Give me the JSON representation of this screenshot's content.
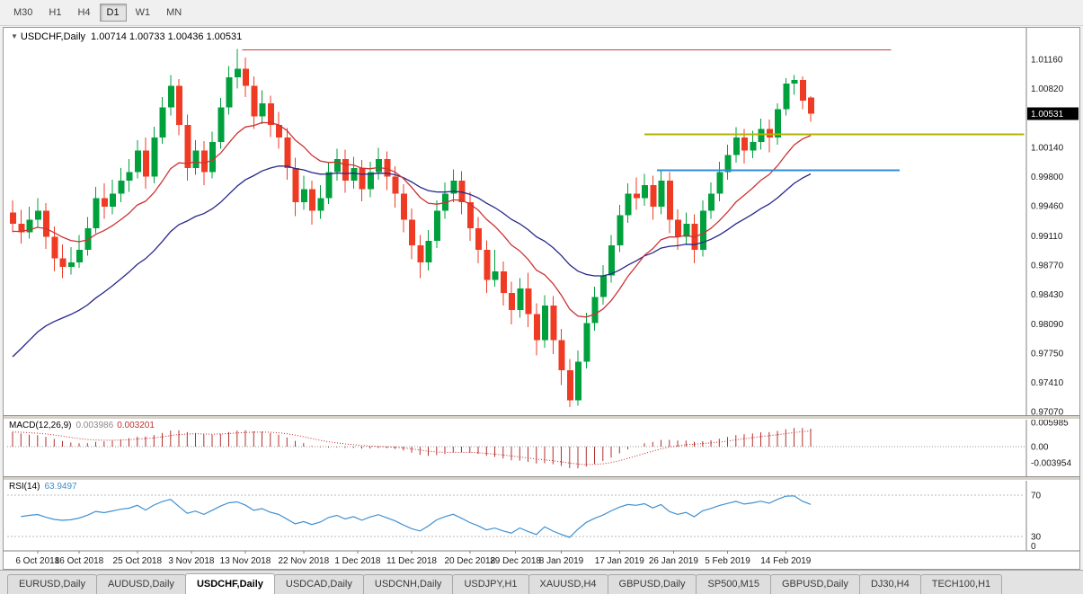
{
  "toolbar": {
    "timeframes": [
      {
        "label": "M30",
        "active": false
      },
      {
        "label": "H1",
        "active": false
      },
      {
        "label": "H4",
        "active": false
      },
      {
        "label": "D1",
        "active": true
      },
      {
        "label": "W1",
        "active": false
      },
      {
        "label": "MN",
        "active": false
      }
    ]
  },
  "chart_window": {
    "title_symbol": "USDCHF,Daily",
    "title_ohlc": "1.00714 1.00733 1.00436 1.00531",
    "macd_label": "MACD(12,26,9)",
    "macd_value_main": "0.003986",
    "macd_value_signal": "0.003201",
    "rsi_label": "RSI(14)",
    "rsi_value": "63.9497"
  },
  "chart_data": {
    "type": "candlestick",
    "symbol": "USDCHF",
    "timeframe": "Daily",
    "ohlc": {
      "open": 1.00714,
      "high": 1.00733,
      "low": 1.00436,
      "close": 1.00531
    },
    "bull_color": "#00a03c",
    "bear_color": "#ef3b24",
    "current_price": "1.00531",
    "price_axis_labels": [
      "1.01160",
      "1.00820",
      "1.00140",
      "0.99800",
      "0.99460",
      "0.99110",
      "0.98770",
      "0.98430",
      "0.98090",
      "0.97750",
      "0.97410",
      "0.97070"
    ],
    "macd_axis_labels": [
      "0.005985",
      "0.00",
      "-0.003954"
    ],
    "rsi_levels": [
      70,
      30
    ],
    "rsi_axis_labels": [
      "70",
      "30",
      "0"
    ],
    "moving_averages": [
      {
        "name": "ma-fast-red",
        "color": "#cc3333"
      },
      {
        "name": "ma-slow-navy",
        "color": "#26268c"
      }
    ],
    "hlines": [
      {
        "name": "resistance-line-red",
        "price": 1.0127,
        "color": "#c04040",
        "width": 1,
        "from_i": 27.6,
        "to_i": 105.7
      },
      {
        "name": "level-line-olive",
        "price": 1.0029,
        "color": "#b3b300",
        "width": 2,
        "from_i": 76.0,
        "to_i": 121.7
      },
      {
        "name": "support-line-blue",
        "price": 0.9987,
        "color": "#2e8ce0",
        "width": 2,
        "from_i": 77.5,
        "to_i": 106.7
      }
    ],
    "x_axis": [
      {
        "label": "6 Oct 2018",
        "i": 3
      },
      {
        "label": "16 Oct 2018",
        "i": 8
      },
      {
        "label": "25 Oct 2018",
        "i": 15
      },
      {
        "label": "3 Nov 2018",
        "i": 21.5
      },
      {
        "label": "13 Nov 2018",
        "i": 28
      },
      {
        "label": "22 Nov 2018",
        "i": 35
      },
      {
        "label": "1 Dec 2018",
        "i": 41.5
      },
      {
        "label": "11 Dec 2018",
        "i": 48
      },
      {
        "label": "20 Dec 2018",
        "i": 55
      },
      {
        "label": "29 Dec 2018",
        "i": 60.5
      },
      {
        "label": "8 Jan 2019",
        "i": 66
      },
      {
        "label": "17 Jan 2019",
        "i": 73
      },
      {
        "label": "26 Jan 2019",
        "i": 79.5
      },
      {
        "label": "5 Feb 2019",
        "i": 86
      },
      {
        "label": "14 Feb 2019",
        "i": 93
      }
    ],
    "candles": [
      [
        0.9938,
        0.9952,
        0.9915,
        0.9925
      ],
      [
        0.9925,
        0.9941,
        0.9902,
        0.9915
      ],
      [
        0.9915,
        0.9945,
        0.9908,
        0.993
      ],
      [
        0.993,
        0.9955,
        0.9921,
        0.994
      ],
      [
        0.994,
        0.9949,
        0.9896,
        0.991
      ],
      [
        0.991,
        0.9922,
        0.987,
        0.9885
      ],
      [
        0.9885,
        0.9901,
        0.9862,
        0.9875
      ],
      [
        0.9875,
        0.9898,
        0.9866,
        0.988
      ],
      [
        0.988,
        0.9912,
        0.9874,
        0.9895
      ],
      [
        0.9895,
        0.9933,
        0.9888,
        0.992
      ],
      [
        0.992,
        0.9968,
        0.9914,
        0.9955
      ],
      [
        0.9955,
        0.9972,
        0.9931,
        0.9945
      ],
      [
        0.9945,
        0.9976,
        0.9936,
        0.996
      ],
      [
        0.996,
        0.999,
        0.995,
        0.9975
      ],
      [
        0.9975,
        1.0,
        0.9962,
        0.9985
      ],
      [
        0.9985,
        1.0022,
        0.9978,
        1.001
      ],
      [
        1.001,
        1.0025,
        0.9966,
        0.998
      ],
      [
        0.998,
        1.0038,
        0.9972,
        1.0025
      ],
      [
        1.0025,
        1.0072,
        1.0018,
        1.006
      ],
      [
        1.006,
        1.0098,
        1.0051,
        1.0085
      ],
      [
        1.0085,
        1.0093,
        1.0028,
        1.004
      ],
      [
        1.004,
        1.0052,
        0.9975,
        0.999
      ],
      [
        0.999,
        1.0022,
        0.9982,
        1.001
      ],
      [
        1.001,
        1.0021,
        0.997,
        0.9985
      ],
      [
        0.9985,
        1.0032,
        0.9978,
        1.002
      ],
      [
        1.002,
        1.0071,
        1.0012,
        1.006
      ],
      [
        1.006,
        1.0108,
        1.0052,
        1.0095
      ],
      [
        1.0095,
        1.0128,
        1.0082,
        1.0105
      ],
      [
        1.0105,
        1.0118,
        1.0072,
        1.0085
      ],
      [
        1.0085,
        1.0096,
        1.0035,
        1.005
      ],
      [
        1.005,
        1.008,
        1.0041,
        1.0065
      ],
      [
        1.0065,
        1.0074,
        1.0026,
        1.004
      ],
      [
        1.004,
        1.0055,
        1.0012,
        1.0025
      ],
      [
        1.0025,
        1.0036,
        0.9976,
        0.999
      ],
      [
        0.999,
        1.0002,
        0.9934,
        0.995
      ],
      [
        0.995,
        0.9981,
        0.9941,
        0.9965
      ],
      [
        0.9965,
        0.9975,
        0.9924,
        0.994
      ],
      [
        0.994,
        0.997,
        0.9931,
        0.9955
      ],
      [
        0.9955,
        0.9996,
        0.9948,
        0.9985
      ],
      [
        0.9985,
        1.0012,
        0.9975,
        1.0
      ],
      [
        1.0,
        1.0011,
        0.9961,
        0.9975
      ],
      [
        0.9975,
        1.0003,
        0.9966,
        0.999
      ],
      [
        0.999,
        0.9999,
        0.9951,
        0.9965
      ],
      [
        0.9965,
        0.9997,
        0.9956,
        0.9985
      ],
      [
        0.9985,
        1.0013,
        0.9976,
        1.0
      ],
      [
        1.0,
        1.0009,
        0.9964,
        0.998
      ],
      [
        0.998,
        0.9992,
        0.9944,
        0.996
      ],
      [
        0.996,
        0.9971,
        0.9915,
        0.993
      ],
      [
        0.993,
        0.9943,
        0.9884,
        0.99
      ],
      [
        0.99,
        0.9912,
        0.9862,
        0.988
      ],
      [
        0.988,
        0.9918,
        0.9871,
        0.9905
      ],
      [
        0.9905,
        0.9952,
        0.9897,
        0.994
      ],
      [
        0.994,
        0.9973,
        0.9931,
        0.996
      ],
      [
        0.996,
        0.9988,
        0.995,
        0.9975
      ],
      [
        0.9975,
        0.9986,
        0.9936,
        0.995
      ],
      [
        0.995,
        0.9962,
        0.9905,
        0.992
      ],
      [
        0.992,
        0.9933,
        0.9879,
        0.9895
      ],
      [
        0.9895,
        0.9906,
        0.9845,
        0.986
      ],
      [
        0.986,
        0.9895,
        0.9852,
        0.987
      ],
      [
        0.987,
        0.9881,
        0.983,
        0.9845
      ],
      [
        0.9845,
        0.9858,
        0.9808,
        0.9825
      ],
      [
        0.9825,
        0.9862,
        0.9816,
        0.985
      ],
      [
        0.985,
        0.9868,
        0.9805,
        0.982
      ],
      [
        0.982,
        0.9833,
        0.9772,
        0.979
      ],
      [
        0.979,
        0.9842,
        0.9781,
        0.983
      ],
      [
        0.983,
        0.9841,
        0.9774,
        0.979
      ],
      [
        0.979,
        0.9803,
        0.9738,
        0.9755
      ],
      [
        0.9755,
        0.9768,
        0.9712,
        0.972
      ],
      [
        0.972,
        0.9778,
        0.9714,
        0.9765
      ],
      [
        0.9765,
        0.9822,
        0.9757,
        0.981
      ],
      [
        0.981,
        0.9852,
        0.9801,
        0.984
      ],
      [
        0.984,
        0.9877,
        0.9831,
        0.9865
      ],
      [
        0.9865,
        0.9912,
        0.9857,
        0.99
      ],
      [
        0.99,
        0.9947,
        0.9892,
        0.9935
      ],
      [
        0.9935,
        0.9972,
        0.9926,
        0.996
      ],
      [
        0.996,
        0.9979,
        0.9941,
        0.9955
      ],
      [
        0.9955,
        0.9983,
        0.9946,
        0.997
      ],
      [
        0.997,
        0.9981,
        0.993,
        0.9945
      ],
      [
        0.9945,
        0.9987,
        0.9936,
        0.9975
      ],
      [
        0.9975,
        0.9985,
        0.9914,
        0.993
      ],
      [
        0.993,
        0.9942,
        0.9895,
        0.991
      ],
      [
        0.991,
        0.9938,
        0.9901,
        0.9925
      ],
      [
        0.9925,
        0.9936,
        0.9879,
        0.9895
      ],
      [
        0.9895,
        0.9952,
        0.9887,
        0.994
      ],
      [
        0.994,
        0.9973,
        0.9931,
        0.996
      ],
      [
        0.996,
        0.9997,
        0.9951,
        0.9985
      ],
      [
        0.9985,
        1.0017,
        0.9976,
        1.0005
      ],
      [
        1.0005,
        1.0037,
        0.9996,
        1.0025
      ],
      [
        1.0025,
        1.0035,
        0.9995,
        1.001
      ],
      [
        1.001,
        1.0033,
        1.0001,
        1.002
      ],
      [
        1.002,
        1.0047,
        1.0011,
        1.0035
      ],
      [
        1.0035,
        1.0046,
        1.0008,
        1.0025
      ],
      [
        1.0025,
        1.0065,
        1.0017,
        1.0058
      ],
      [
        1.0058,
        1.0094,
        1.0051,
        1.0088
      ],
      [
        1.0088,
        1.0098,
        1.0075,
        1.0092
      ],
      [
        1.0092,
        1.0096,
        1.0058,
        1.0068
      ],
      [
        1.00714,
        1.00733,
        1.00436,
        1.00531
      ]
    ]
  },
  "tabs": [
    {
      "label": "EURUSD,Daily",
      "active": false
    },
    {
      "label": "AUDUSD,Daily",
      "active": false
    },
    {
      "label": "USDCHF,Daily",
      "active": true
    },
    {
      "label": "USDCAD,Daily",
      "active": false
    },
    {
      "label": "USDCNH,Daily",
      "active": false
    },
    {
      "label": "USDJPY,H1",
      "active": false
    },
    {
      "label": "XAUUSD,H4",
      "active": false
    },
    {
      "label": "GBPUSD,Daily",
      "active": false
    },
    {
      "label": "SP500,M15",
      "active": false
    },
    {
      "label": "GBPUSD,Daily",
      "active": false
    },
    {
      "label": "DJ30,H4",
      "active": false
    },
    {
      "label": "TECH100,H1",
      "active": false
    }
  ]
}
